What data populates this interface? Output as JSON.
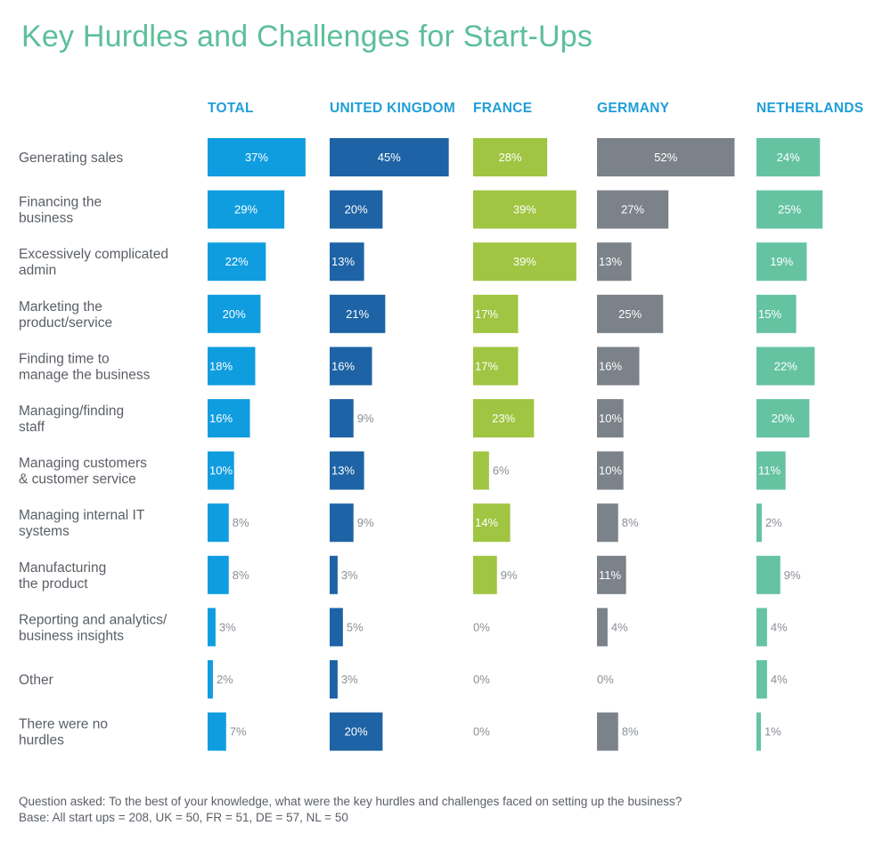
{
  "title": "Key Hurdles and Challenges for Start-Ups",
  "footnote": {
    "question": "Question asked: To the best of your knowledge, what were the key hurdles and challenges faced on setting up the business?",
    "base": "Base: All start ups = 208, UK = 50, FR = 51, DE = 57, NL = 50"
  },
  "colors": {
    "title": "#5cbf9a",
    "header_text": "#1f9ed8",
    "label_text": "#5a5f66",
    "total": "#0f9de0",
    "united_kingdom": "#1d63a5",
    "france": "#9fc542",
    "germany": "#7b8289",
    "netherlands": "#65c3a2"
  },
  "chart_data": {
    "type": "bar",
    "orientation": "horizontal",
    "value_suffix": "%",
    "categories": [
      "Generating sales",
      "Financing the business",
      "Excessively complicated admin",
      "Marketing the product/service",
      "Finding time to manage the business",
      "Managing/finding staff",
      "Managing customers & customer service",
      "Managing internal IT systems",
      "Manufacturing the product",
      "Reporting and analytics/ business insights",
      "Other",
      "There were no hurdles"
    ],
    "category_lines": [
      [
        "Generating sales"
      ],
      [
        "Financing the",
        "business"
      ],
      [
        "Excessively complicated",
        "admin"
      ],
      [
        "Marketing the",
        "product/service"
      ],
      [
        "Finding time to",
        "manage the business"
      ],
      [
        "Managing/finding",
        "staff"
      ],
      [
        "Managing customers",
        "& customer service"
      ],
      [
        "Managing internal IT",
        "systems"
      ],
      [
        "Manufacturing",
        "the product"
      ],
      [
        "Reporting and analytics/",
        "business insights"
      ],
      [
        "Other"
      ],
      [
        "There were no",
        "hurdles"
      ]
    ],
    "series": [
      {
        "name": "TOTAL",
        "color": "#0f9de0",
        "values": [
          37,
          29,
          22,
          20,
          18,
          16,
          10,
          8,
          8,
          3,
          2,
          7
        ]
      },
      {
        "name": "UNITED KINGDOM",
        "color": "#1d63a5",
        "values": [
          45,
          20,
          13,
          21,
          16,
          9,
          13,
          9,
          3,
          5,
          3,
          20
        ]
      },
      {
        "name": "FRANCE",
        "color": "#9fc542",
        "values": [
          28,
          39,
          39,
          17,
          17,
          23,
          6,
          14,
          9,
          0,
          0,
          0
        ]
      },
      {
        "name": "GERMANY",
        "color": "#7b8289",
        "values": [
          52,
          27,
          13,
          25,
          16,
          10,
          10,
          8,
          11,
          4,
          0,
          8
        ]
      },
      {
        "name": "NETHERLANDS",
        "color": "#65c3a2",
        "values": [
          24,
          25,
          19,
          15,
          22,
          20,
          11,
          2,
          9,
          4,
          4,
          1
        ]
      }
    ]
  }
}
